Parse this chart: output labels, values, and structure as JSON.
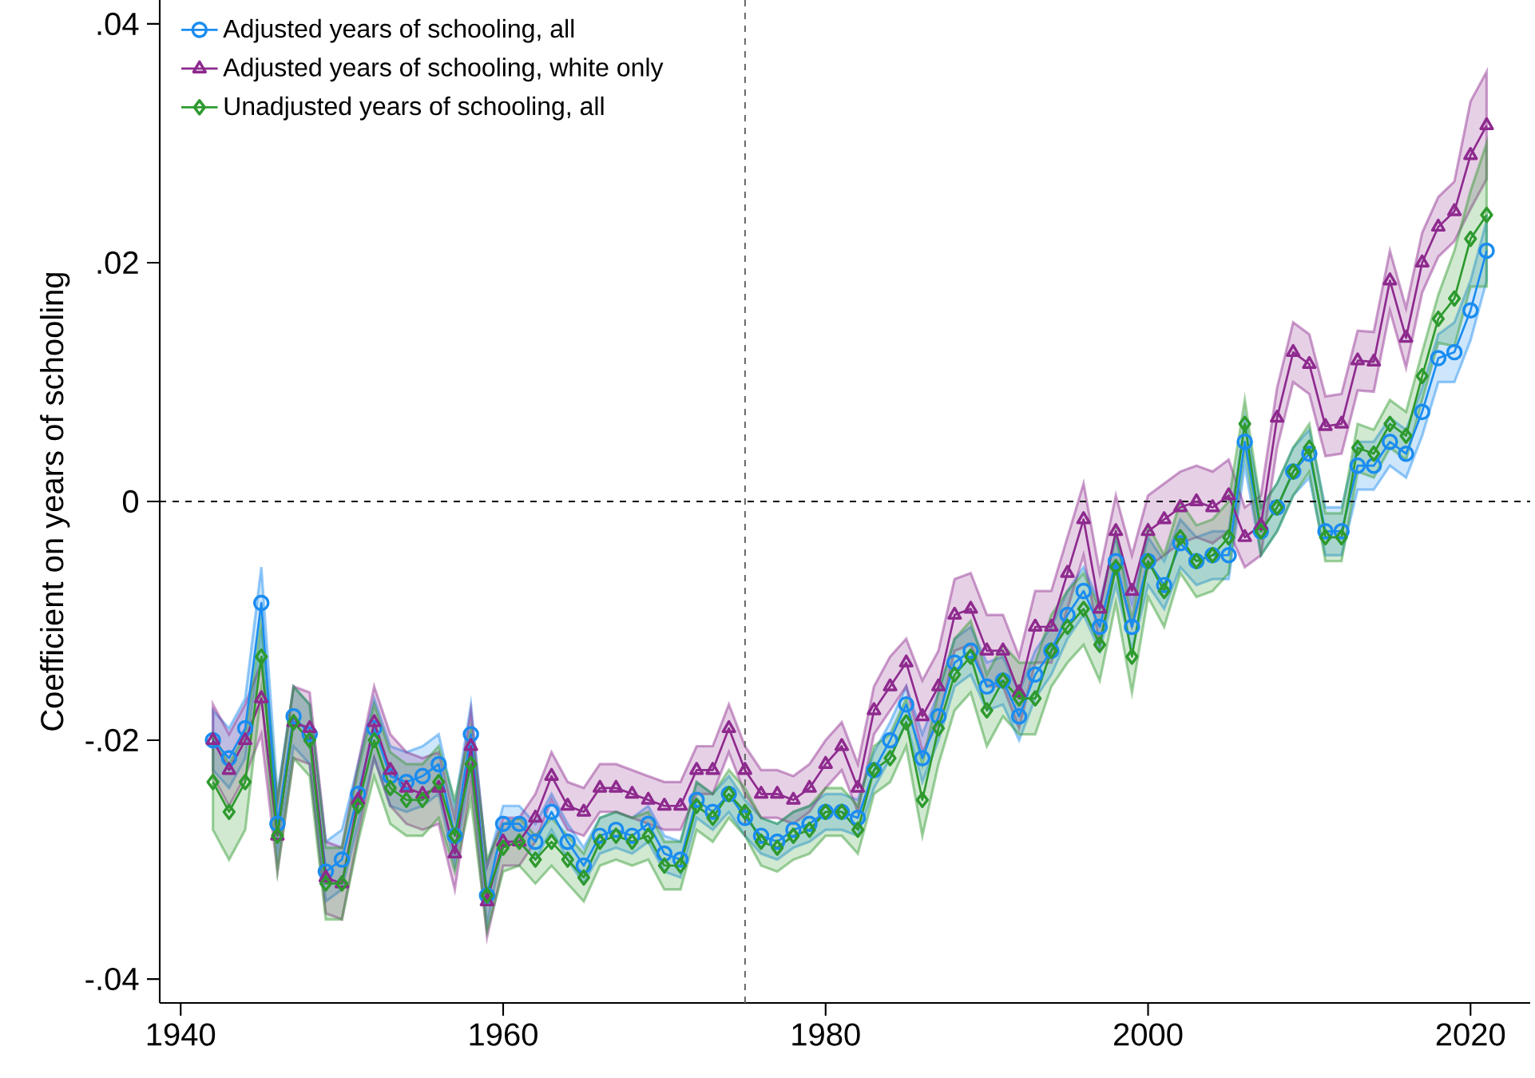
{
  "chart_data": {
    "type": "line",
    "ylabel": "Coefficient on years of schooling",
    "x": [
      1942,
      1943,
      1944,
      1945,
      1946,
      1947,
      1948,
      1949,
      1950,
      1951,
      1952,
      1953,
      1954,
      1955,
      1956,
      1957,
      1958,
      1959,
      1960,
      1961,
      1962,
      1963,
      1964,
      1965,
      1966,
      1967,
      1968,
      1969,
      1970,
      1971,
      1972,
      1973,
      1974,
      1975,
      1976,
      1977,
      1978,
      1979,
      1980,
      1981,
      1982,
      1983,
      1984,
      1985,
      1986,
      1987,
      1988,
      1989,
      1990,
      1991,
      1992,
      1993,
      1994,
      1995,
      1996,
      1997,
      1998,
      1999,
      2000,
      2001,
      2002,
      2003,
      2004,
      2005,
      2006,
      2007,
      2008,
      2009,
      2010,
      2011,
      2012,
      2013,
      2014,
      2015,
      2016,
      2017,
      2018,
      2019,
      2020,
      2021
    ],
    "xlim": [
      1938.7,
      2023.7
    ],
    "xticks": [
      1940,
      1960,
      1980,
      2000,
      2020
    ],
    "ylim": [
      -0.042,
      0.042
    ],
    "yticks": [
      {
        "value": -0.04,
        "label": "-.04"
      },
      {
        "value": -0.02,
        "label": "-.02"
      },
      {
        "value": 0,
        "label": "0"
      },
      {
        "value": 0.02,
        "label": ".02"
      },
      {
        "value": 0.04,
        "label": ".04"
      }
    ],
    "legend": "top left",
    "grid": false,
    "line_style": "solid",
    "ref_lines": [
      {
        "axis": "y",
        "value": 0,
        "color": "#000000",
        "line_style": "dashed"
      },
      {
        "axis": "x",
        "value": 1975,
        "color": "#666666",
        "line_style": "dashed"
      }
    ],
    "series": [
      {
        "name": "Adjusted years of schooling, all",
        "color": "#1a8cf0",
        "marker": "circle",
        "values": [
          -0.02,
          -0.0215,
          -0.019,
          -0.0085,
          -0.027,
          -0.018,
          -0.0195,
          -0.031,
          -0.03,
          -0.0245,
          -0.019,
          -0.023,
          -0.0235,
          -0.023,
          -0.022,
          -0.028,
          -0.0195,
          -0.033,
          -0.027,
          -0.027,
          -0.0285,
          -0.026,
          -0.0285,
          -0.0305,
          -0.028,
          -0.0275,
          -0.028,
          -0.027,
          -0.0295,
          -0.03,
          -0.025,
          -0.026,
          -0.0245,
          -0.0265,
          -0.028,
          -0.0285,
          -0.0275,
          -0.027,
          -0.026,
          -0.026,
          -0.0265,
          -0.0225,
          -0.02,
          -0.017,
          -0.0215,
          -0.018,
          -0.0135,
          -0.0125,
          -0.0155,
          -0.015,
          -0.018,
          -0.0145,
          -0.0125,
          -0.0095,
          -0.0075,
          -0.0105,
          -0.005,
          -0.0105,
          -0.005,
          -0.007,
          -0.0035,
          -0.005,
          -0.0045,
          -0.0045,
          0.005,
          -0.0025,
          -0.0005,
          0.0025,
          0.004,
          -0.0025,
          -0.0025,
          0.003,
          0.003,
          0.005,
          0.004,
          0.0075,
          0.012,
          0.0125,
          0.016,
          0.021
        ],
        "lower": [
          -0.0225,
          -0.024,
          -0.0215,
          -0.0115,
          -0.0295,
          -0.0205,
          -0.022,
          -0.0335,
          -0.0325,
          -0.027,
          -0.0215,
          -0.0255,
          -0.026,
          -0.0255,
          -0.0245,
          -0.0305,
          -0.022,
          -0.0355,
          -0.0285,
          -0.0285,
          -0.03,
          -0.0275,
          -0.03,
          -0.032,
          -0.0295,
          -0.029,
          -0.0295,
          -0.0285,
          -0.031,
          -0.0315,
          -0.0265,
          -0.0275,
          -0.026,
          -0.028,
          -0.0295,
          -0.03,
          -0.029,
          -0.0285,
          -0.0275,
          -0.0275,
          -0.028,
          -0.024,
          -0.0215,
          -0.0185,
          -0.0235,
          -0.02,
          -0.0155,
          -0.0145,
          -0.0175,
          -0.017,
          -0.02,
          -0.0165,
          -0.0145,
          -0.0115,
          -0.0095,
          -0.0125,
          -0.007,
          -0.0125,
          -0.007,
          -0.009,
          -0.0055,
          -0.007,
          -0.0065,
          -0.0065,
          0.003,
          -0.0045,
          -0.0025,
          0.0005,
          0.002,
          -0.0045,
          -0.0045,
          0.001,
          0.001,
          0.003,
          0.002,
          0.0055,
          0.01,
          0.01,
          0.0135,
          0.0185
        ],
        "upper": [
          -0.0175,
          -0.019,
          -0.0165,
          -0.0055,
          -0.0245,
          -0.0155,
          -0.017,
          -0.0285,
          -0.0275,
          -0.022,
          -0.0165,
          -0.0205,
          -0.021,
          -0.0205,
          -0.0195,
          -0.0255,
          -0.017,
          -0.0305,
          -0.0255,
          -0.0255,
          -0.027,
          -0.0245,
          -0.027,
          -0.029,
          -0.0265,
          -0.026,
          -0.0265,
          -0.0255,
          -0.028,
          -0.0285,
          -0.0235,
          -0.0245,
          -0.023,
          -0.025,
          -0.0265,
          -0.027,
          -0.026,
          -0.0255,
          -0.0245,
          -0.0245,
          -0.025,
          -0.021,
          -0.0185,
          -0.0155,
          -0.0195,
          -0.016,
          -0.0115,
          -0.0105,
          -0.0135,
          -0.013,
          -0.016,
          -0.0125,
          -0.0105,
          -0.0075,
          -0.0055,
          -0.0085,
          -0.003,
          -0.0085,
          -0.003,
          -0.005,
          -0.0015,
          -0.003,
          -0.0025,
          -0.0025,
          0.007,
          -0.0005,
          0.0015,
          0.0045,
          0.006,
          -0.0005,
          -0.0005,
          0.005,
          0.005,
          0.007,
          0.006,
          0.0095,
          0.014,
          0.015,
          0.0185,
          0.0235
        ]
      },
      {
        "name": "Adjusted years of schooling, white only",
        "color": "#8e2a8e",
        "marker": "triangle",
        "values": [
          -0.02,
          -0.0225,
          -0.02,
          -0.0165,
          -0.028,
          -0.0185,
          -0.019,
          -0.0315,
          -0.032,
          -0.025,
          -0.0185,
          -0.0225,
          -0.024,
          -0.0245,
          -0.024,
          -0.0295,
          -0.0205,
          -0.0335,
          -0.0285,
          -0.0285,
          -0.0265,
          -0.023,
          -0.0255,
          -0.026,
          -0.024,
          -0.024,
          -0.0245,
          -0.025,
          -0.0255,
          -0.0255,
          -0.0225,
          -0.0225,
          -0.019,
          -0.0225,
          -0.0245,
          -0.0245,
          -0.025,
          -0.024,
          -0.022,
          -0.0205,
          -0.024,
          -0.0175,
          -0.0155,
          -0.0135,
          -0.018,
          -0.0155,
          -0.0095,
          -0.009,
          -0.0125,
          -0.0125,
          -0.016,
          -0.0105,
          -0.0105,
          -0.006,
          -0.0015,
          -0.009,
          -0.0025,
          -0.0075,
          -0.0025,
          -0.0015,
          -0.0005,
          0.0,
          -0.0005,
          0.0005,
          -0.003,
          -0.002,
          0.007,
          0.0125,
          0.0115,
          0.0063,
          0.0065,
          0.0118,
          0.0117,
          0.0185,
          0.0137,
          0.02,
          0.023,
          0.0243,
          0.029,
          0.0315
        ],
        "lower": [
          -0.023,
          -0.0255,
          -0.023,
          -0.0195,
          -0.031,
          -0.0215,
          -0.022,
          -0.0345,
          -0.035,
          -0.028,
          -0.0215,
          -0.0255,
          -0.027,
          -0.0275,
          -0.027,
          -0.0325,
          -0.0235,
          -0.0365,
          -0.0305,
          -0.0305,
          -0.0285,
          -0.025,
          -0.0275,
          -0.028,
          -0.026,
          -0.026,
          -0.0265,
          -0.027,
          -0.0275,
          -0.0275,
          -0.0245,
          -0.0245,
          -0.021,
          -0.0245,
          -0.0265,
          -0.0265,
          -0.027,
          -0.026,
          -0.024,
          -0.0225,
          -0.026,
          -0.0195,
          -0.0175,
          -0.0155,
          -0.021,
          -0.0185,
          -0.0125,
          -0.012,
          -0.0155,
          -0.0155,
          -0.019,
          -0.0135,
          -0.0135,
          -0.009,
          -0.0045,
          -0.012,
          -0.0055,
          -0.0105,
          -0.0055,
          -0.0045,
          -0.0035,
          -0.003,
          -0.0035,
          -0.0025,
          -0.0055,
          -0.0045,
          0.0045,
          0.01,
          0.009,
          0.0038,
          0.004,
          0.0093,
          0.0092,
          0.016,
          0.0112,
          0.0175,
          0.0205,
          0.0218,
          0.0245,
          0.027
        ],
        "upper": [
          -0.017,
          -0.0195,
          -0.017,
          -0.0135,
          -0.025,
          -0.0155,
          -0.016,
          -0.0285,
          -0.029,
          -0.022,
          -0.0155,
          -0.0195,
          -0.021,
          -0.0215,
          -0.021,
          -0.0265,
          -0.0175,
          -0.0305,
          -0.0265,
          -0.0265,
          -0.0245,
          -0.021,
          -0.0235,
          -0.024,
          -0.022,
          -0.022,
          -0.0225,
          -0.023,
          -0.0235,
          -0.0235,
          -0.0205,
          -0.0205,
          -0.017,
          -0.0205,
          -0.0225,
          -0.0225,
          -0.023,
          -0.022,
          -0.02,
          -0.0185,
          -0.022,
          -0.0155,
          -0.013,
          -0.0115,
          -0.015,
          -0.0125,
          -0.0065,
          -0.006,
          -0.0095,
          -0.0095,
          -0.013,
          -0.0075,
          -0.0075,
          -0.003,
          0.0015,
          -0.006,
          0.0005,
          -0.0045,
          0.0005,
          0.0015,
          0.0025,
          0.003,
          0.0025,
          0.0035,
          -0.0005,
          0.0005,
          0.0095,
          0.015,
          0.014,
          0.0088,
          0.009,
          0.0143,
          0.0142,
          0.021,
          0.0162,
          0.0225,
          0.0255,
          0.0268,
          0.0335,
          0.036
        ]
      },
      {
        "name": "Unadjusted years of schooling, all",
        "color": "#2e9a2e",
        "marker": "diamond",
        "values": [
          -0.0235,
          -0.026,
          -0.0235,
          -0.013,
          -0.028,
          -0.0185,
          -0.02,
          -0.032,
          -0.032,
          -0.0255,
          -0.02,
          -0.024,
          -0.025,
          -0.025,
          -0.0235,
          -0.028,
          -0.022,
          -0.033,
          -0.029,
          -0.0285,
          -0.03,
          -0.0285,
          -0.03,
          -0.0315,
          -0.0285,
          -0.028,
          -0.0285,
          -0.028,
          -0.0305,
          -0.0305,
          -0.0255,
          -0.0265,
          -0.0245,
          -0.026,
          -0.0285,
          -0.029,
          -0.028,
          -0.0275,
          -0.026,
          -0.026,
          -0.0275,
          -0.0225,
          -0.0215,
          -0.0185,
          -0.025,
          -0.019,
          -0.0145,
          -0.013,
          -0.0175,
          -0.015,
          -0.0165,
          -0.0165,
          -0.0125,
          -0.0105,
          -0.009,
          -0.012,
          -0.0055,
          -0.013,
          -0.005,
          -0.0075,
          -0.003,
          -0.005,
          -0.0045,
          -0.003,
          0.0065,
          -0.0025,
          -0.0005,
          0.0025,
          0.0045,
          -0.003,
          -0.003,
          0.0045,
          0.004,
          0.0065,
          0.0055,
          0.0105,
          0.0153,
          0.017,
          0.022,
          0.024
        ],
        "lower": [
          -0.0275,
          -0.03,
          -0.0275,
          -0.016,
          -0.031,
          -0.0215,
          -0.023,
          -0.035,
          -0.035,
          -0.0285,
          -0.023,
          -0.027,
          -0.028,
          -0.028,
          -0.0265,
          -0.031,
          -0.025,
          -0.036,
          -0.031,
          -0.0305,
          -0.032,
          -0.0305,
          -0.032,
          -0.0335,
          -0.0305,
          -0.03,
          -0.0305,
          -0.03,
          -0.0325,
          -0.0325,
          -0.0275,
          -0.0285,
          -0.0265,
          -0.028,
          -0.0305,
          -0.031,
          -0.03,
          -0.0295,
          -0.028,
          -0.028,
          -0.0295,
          -0.0245,
          -0.0235,
          -0.0205,
          -0.028,
          -0.022,
          -0.0175,
          -0.016,
          -0.0205,
          -0.018,
          -0.0195,
          -0.0195,
          -0.0155,
          -0.0135,
          -0.012,
          -0.015,
          -0.0085,
          -0.016,
          -0.008,
          -0.0105,
          -0.006,
          -0.008,
          -0.0075,
          -0.006,
          0.0045,
          -0.0045,
          -0.0025,
          0.0005,
          0.0025,
          -0.005,
          -0.005,
          0.0025,
          0.002,
          0.0045,
          0.0035,
          0.0085,
          0.0133,
          0.013,
          0.018,
          0.018
        ],
        "upper": [
          -0.0195,
          -0.022,
          -0.0195,
          -0.01,
          -0.025,
          -0.0155,
          -0.017,
          -0.029,
          -0.029,
          -0.0225,
          -0.017,
          -0.021,
          -0.022,
          -0.022,
          -0.0205,
          -0.025,
          -0.019,
          -0.03,
          -0.027,
          -0.0265,
          -0.028,
          -0.0265,
          -0.028,
          -0.0295,
          -0.0265,
          -0.026,
          -0.0265,
          -0.026,
          -0.0285,
          -0.0285,
          -0.0235,
          -0.0245,
          -0.0225,
          -0.024,
          -0.0265,
          -0.027,
          -0.026,
          -0.0255,
          -0.024,
          -0.024,
          -0.0255,
          -0.0205,
          -0.0195,
          -0.0165,
          -0.022,
          -0.016,
          -0.0115,
          -0.01,
          -0.0145,
          -0.012,
          -0.0135,
          -0.0135,
          -0.0095,
          -0.0075,
          -0.006,
          -0.009,
          -0.0025,
          -0.01,
          -0.002,
          -0.0045,
          0.0,
          -0.002,
          -0.0015,
          0.0,
          0.0085,
          -0.0005,
          0.0015,
          0.0045,
          0.0065,
          -0.001,
          -0.001,
          0.0065,
          0.006,
          0.0085,
          0.0075,
          0.0125,
          0.0173,
          0.021,
          0.026,
          0.03
        ]
      }
    ]
  }
}
